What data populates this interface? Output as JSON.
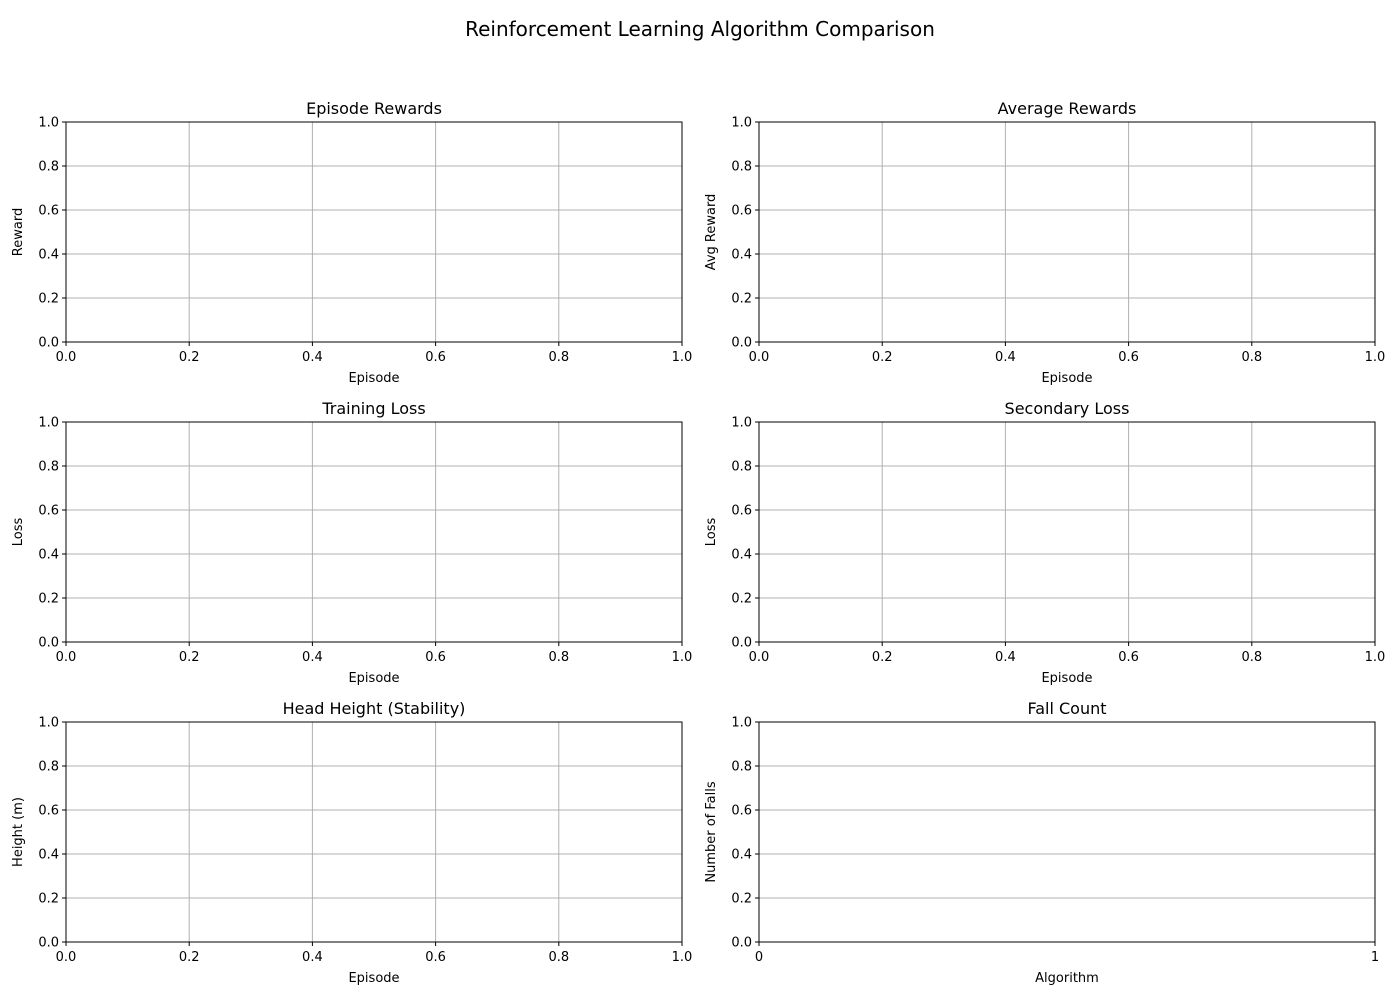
{
  "figure_title": "Reinforcement Learning Algorithm Comparison",
  "colors": {
    "grid": "#b0b0b0",
    "axes": "#000000",
    "background": "#ffffff"
  },
  "chart_data": [
    {
      "type": "line",
      "title": "Episode Rewards",
      "xlabel": "Episode",
      "ylabel": "Reward",
      "xlim": [
        0,
        1
      ],
      "ylim": [
        0,
        1
      ],
      "xticks": [
        "0.0",
        "0.2",
        "0.4",
        "0.6",
        "0.8",
        "1.0"
      ],
      "yticks": [
        "0.0",
        "0.2",
        "0.4",
        "0.6",
        "0.8",
        "1.0"
      ],
      "grid": true,
      "series": []
    },
    {
      "type": "line",
      "title": "Average Rewards",
      "xlabel": "Episode",
      "ylabel": "Avg Reward",
      "xlim": [
        0,
        1
      ],
      "ylim": [
        0,
        1
      ],
      "xticks": [
        "0.0",
        "0.2",
        "0.4",
        "0.6",
        "0.8",
        "1.0"
      ],
      "yticks": [
        "0.0",
        "0.2",
        "0.4",
        "0.6",
        "0.8",
        "1.0"
      ],
      "grid": true,
      "series": []
    },
    {
      "type": "line",
      "title": "Training Loss",
      "xlabel": "Episode",
      "ylabel": "Loss",
      "xlim": [
        0,
        1
      ],
      "ylim": [
        0,
        1
      ],
      "xticks": [
        "0.0",
        "0.2",
        "0.4",
        "0.6",
        "0.8",
        "1.0"
      ],
      "yticks": [
        "0.0",
        "0.2",
        "0.4",
        "0.6",
        "0.8",
        "1.0"
      ],
      "grid": true,
      "series": []
    },
    {
      "type": "line",
      "title": "Secondary Loss",
      "xlabel": "Episode",
      "ylabel": "Loss",
      "xlim": [
        0,
        1
      ],
      "ylim": [
        0,
        1
      ],
      "xticks": [
        "0.0",
        "0.2",
        "0.4",
        "0.6",
        "0.8",
        "1.0"
      ],
      "yticks": [
        "0.0",
        "0.2",
        "0.4",
        "0.6",
        "0.8",
        "1.0"
      ],
      "grid": true,
      "series": []
    },
    {
      "type": "line",
      "title": "Head Height (Stability)",
      "xlabel": "Episode",
      "ylabel": "Height (m)",
      "xlim": [
        0,
        1
      ],
      "ylim": [
        0,
        1
      ],
      "xticks": [
        "0.0",
        "0.2",
        "0.4",
        "0.6",
        "0.8",
        "1.0"
      ],
      "yticks": [
        "0.0",
        "0.2",
        "0.4",
        "0.6",
        "0.8",
        "1.0"
      ],
      "grid": true,
      "series": []
    },
    {
      "type": "bar",
      "title": "Fall Count",
      "xlabel": "Algorithm",
      "ylabel": "Number of Falls",
      "xlim": [
        0,
        1
      ],
      "ylim": [
        0,
        1
      ],
      "xticks": [
        "0",
        "1"
      ],
      "yticks": [
        "0.0",
        "0.2",
        "0.4",
        "0.6",
        "0.8",
        "1.0"
      ],
      "grid": true,
      "grid_axis": "y",
      "categories": [],
      "values": []
    }
  ]
}
